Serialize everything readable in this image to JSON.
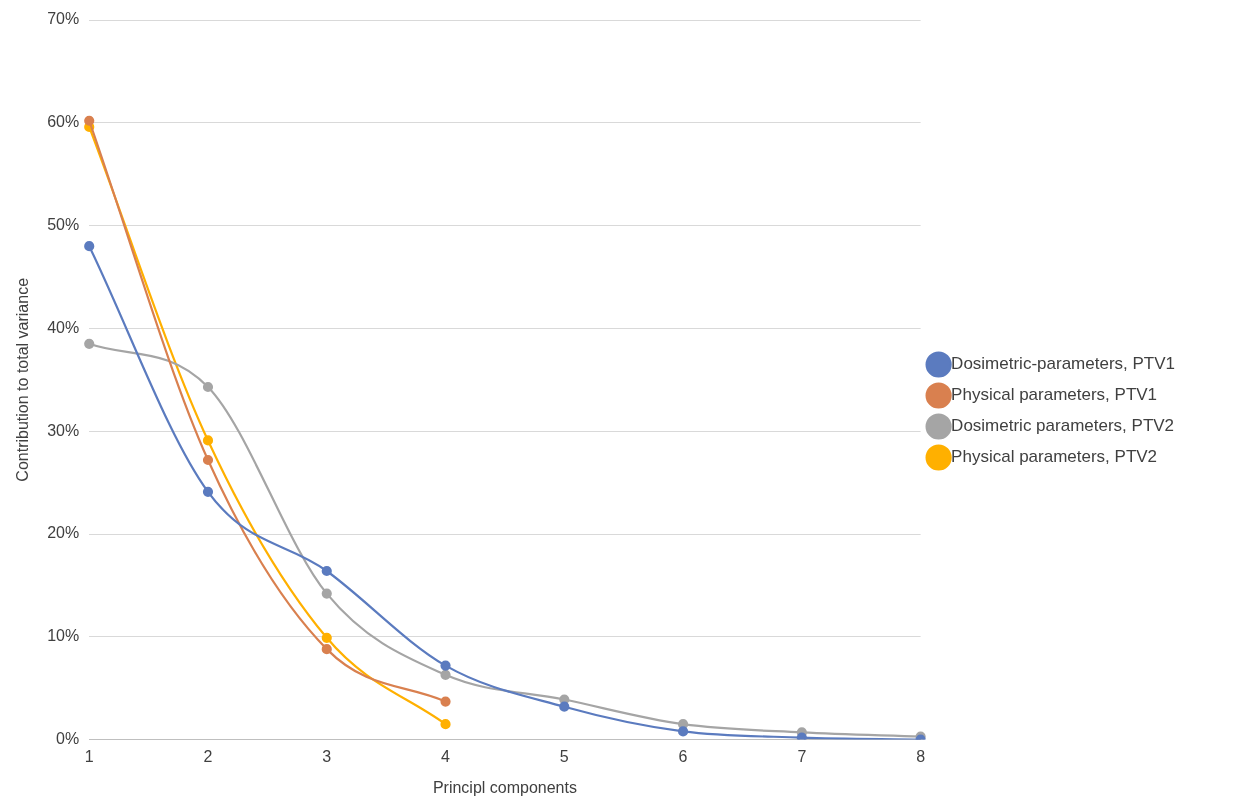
{
  "chart_data": {
    "type": "line",
    "xlabel": "Principl components",
    "ylabel": "Contribution to total variance",
    "categories": [
      "1",
      "2",
      "3",
      "4",
      "5",
      "6",
      "7",
      "8"
    ],
    "series": [
      {
        "name": "Dosimetric-parameters, PTV1",
        "color": "#5b7bbf",
        "values": [
          48.0,
          24.1,
          16.4,
          7.2,
          3.2,
          0.8,
          0.2,
          0
        ]
      },
      {
        "name": "Physical parameters, PTV1",
        "color": "#d9804f",
        "values": [
          60.2,
          27.2,
          8.8,
          3.7,
          null,
          null,
          null,
          null
        ]
      },
      {
        "name": "Dosimetric parameters, PTV2",
        "color": "#a5a5a5",
        "values": [
          38.5,
          34.3,
          14.2,
          6.3,
          3.9,
          1.5,
          0.7,
          0.3
        ]
      },
      {
        "name": "Physical parameters, PTV2",
        "color": "#ffb000",
        "values": [
          59.6,
          29.1,
          9.9,
          1.5,
          null,
          null,
          null,
          null
        ]
      }
    ],
    "ylim": [
      0,
      70
    ],
    "yticks": [
      {
        "value": 0,
        "label": "0%"
      },
      {
        "value": 10,
        "label": "10%"
      },
      {
        "value": 20,
        "label": "20%"
      },
      {
        "value": 30,
        "label": "30%"
      },
      {
        "value": 40,
        "label": "40%"
      },
      {
        "value": 50,
        "label": "50%"
      },
      {
        "value": 60,
        "label": "60%"
      },
      {
        "value": 70,
        "label": "70%"
      }
    ],
    "grid": "y",
    "legend": "right",
    "marker": "circle",
    "line_style": "solid"
  }
}
